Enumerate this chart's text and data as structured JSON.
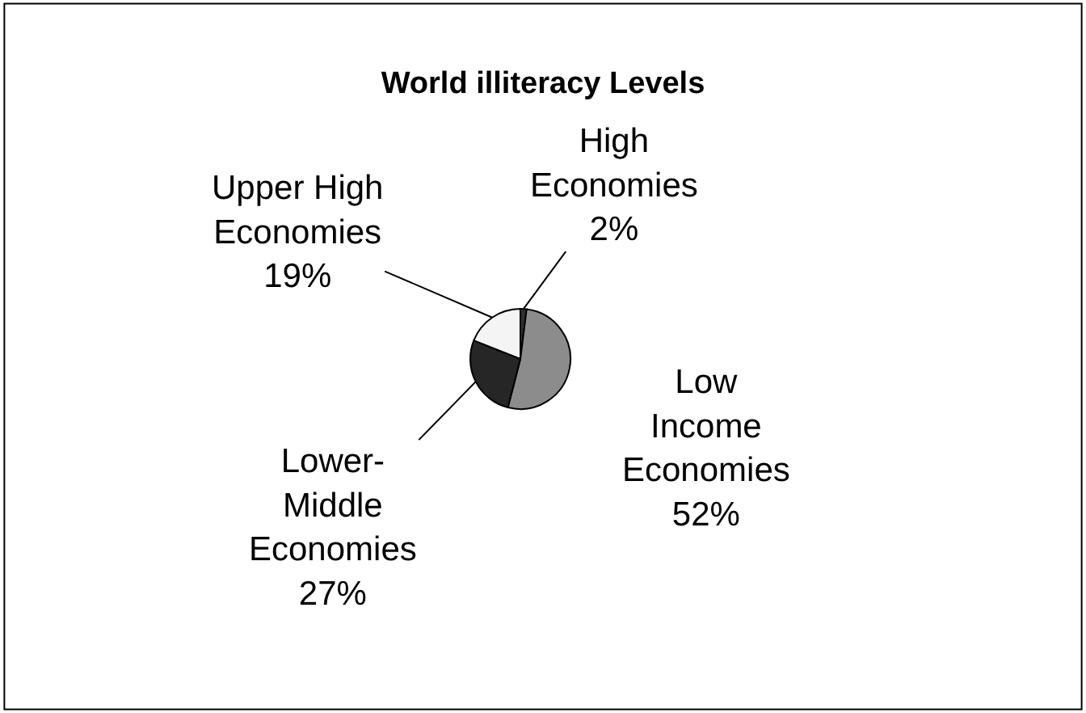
{
  "chart_data": {
    "type": "pie",
    "title": "World illiteracy Levels",
    "categories": [
      "High\nEconomies",
      "Low\nIncome\nEconomies",
      "Lower-\nMiddle\nEconomies",
      "Upper High\nEconomies"
    ],
    "values": [
      2,
      52,
      27,
      19
    ],
    "colors": [
      "#303030",
      "#8c8c8c",
      "#262626",
      "#f4f4f4"
    ],
    "value_labels": [
      "2%",
      "52%",
      "27%",
      "19%"
    ],
    "legend": false
  }
}
